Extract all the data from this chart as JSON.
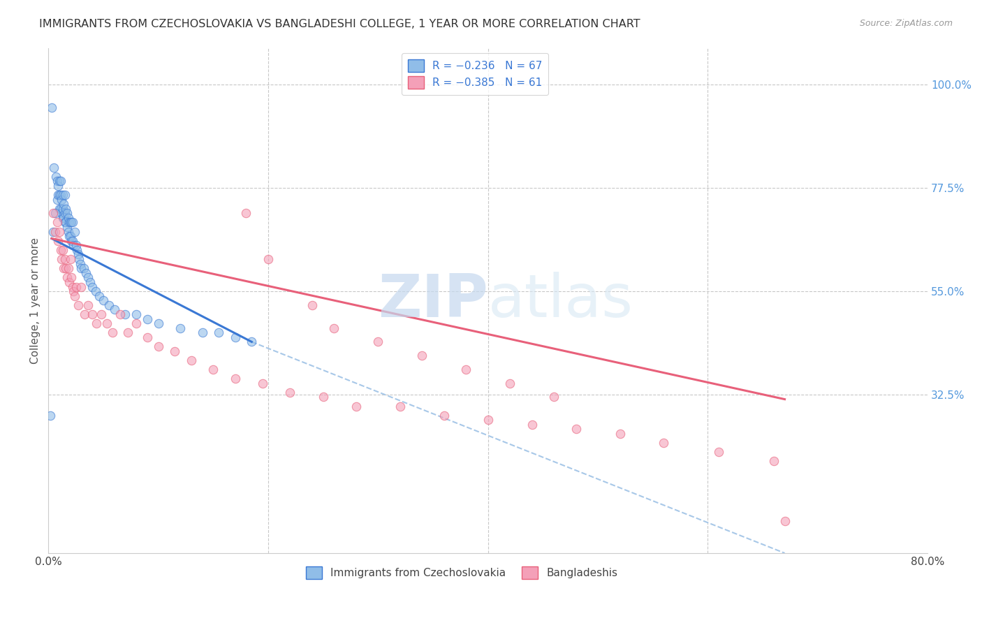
{
  "title": "IMMIGRANTS FROM CZECHOSLOVAKIA VS BANGLADESHI COLLEGE, 1 YEAR OR MORE CORRELATION CHART",
  "source": "Source: ZipAtlas.com",
  "ylabel": "College, 1 year or more",
  "xlim": [
    0.0,
    0.8
  ],
  "ylim": [
    -0.02,
    1.08
  ],
  "x_ticks": [
    0.0,
    0.2,
    0.4,
    0.6,
    0.8
  ],
  "x_tick_labels": [
    "0.0%",
    "",
    "",
    "",
    "80.0%"
  ],
  "y_ticks_right": [
    0.0,
    0.325,
    0.55,
    0.775,
    1.0
  ],
  "y_tick_labels_right": [
    "",
    "32.5%",
    "55.0%",
    "77.5%",
    "100.0%"
  ],
  "blue_scatter_x": [
    0.003,
    0.005,
    0.007,
    0.008,
    0.008,
    0.009,
    0.009,
    0.01,
    0.01,
    0.01,
    0.011,
    0.011,
    0.011,
    0.012,
    0.012,
    0.013,
    0.013,
    0.013,
    0.014,
    0.014,
    0.015,
    0.015,
    0.015,
    0.016,
    0.016,
    0.017,
    0.017,
    0.018,
    0.018,
    0.019,
    0.019,
    0.02,
    0.02,
    0.021,
    0.021,
    0.022,
    0.022,
    0.023,
    0.024,
    0.025,
    0.026,
    0.027,
    0.028,
    0.029,
    0.03,
    0.032,
    0.034,
    0.036,
    0.038,
    0.04,
    0.043,
    0.046,
    0.05,
    0.055,
    0.06,
    0.07,
    0.08,
    0.09,
    0.1,
    0.12,
    0.14,
    0.155,
    0.17,
    0.185,
    0.002,
    0.004,
    0.006
  ],
  "blue_scatter_y": [
    0.95,
    0.82,
    0.8,
    0.75,
    0.79,
    0.76,
    0.78,
    0.73,
    0.76,
    0.79,
    0.73,
    0.76,
    0.79,
    0.72,
    0.75,
    0.71,
    0.73,
    0.76,
    0.71,
    0.74,
    0.7,
    0.72,
    0.76,
    0.7,
    0.73,
    0.69,
    0.72,
    0.68,
    0.71,
    0.67,
    0.7,
    0.67,
    0.7,
    0.66,
    0.7,
    0.66,
    0.7,
    0.65,
    0.68,
    0.65,
    0.64,
    0.63,
    0.62,
    0.61,
    0.6,
    0.6,
    0.59,
    0.58,
    0.57,
    0.56,
    0.55,
    0.54,
    0.53,
    0.52,
    0.51,
    0.5,
    0.5,
    0.49,
    0.48,
    0.47,
    0.46,
    0.46,
    0.45,
    0.44,
    0.28,
    0.68,
    0.72
  ],
  "pink_scatter_x": [
    0.004,
    0.006,
    0.008,
    0.009,
    0.01,
    0.011,
    0.012,
    0.013,
    0.014,
    0.015,
    0.016,
    0.017,
    0.018,
    0.019,
    0.02,
    0.021,
    0.022,
    0.023,
    0.024,
    0.025,
    0.027,
    0.03,
    0.033,
    0.036,
    0.04,
    0.044,
    0.048,
    0.053,
    0.058,
    0.065,
    0.072,
    0.08,
    0.09,
    0.1,
    0.115,
    0.13,
    0.15,
    0.17,
    0.195,
    0.22,
    0.25,
    0.28,
    0.32,
    0.36,
    0.4,
    0.44,
    0.48,
    0.52,
    0.56,
    0.61,
    0.66,
    0.18,
    0.2,
    0.24,
    0.26,
    0.3,
    0.34,
    0.38,
    0.42,
    0.46,
    0.67
  ],
  "pink_scatter_y": [
    0.72,
    0.68,
    0.7,
    0.66,
    0.68,
    0.64,
    0.62,
    0.64,
    0.6,
    0.62,
    0.6,
    0.58,
    0.6,
    0.57,
    0.62,
    0.58,
    0.56,
    0.55,
    0.54,
    0.56,
    0.52,
    0.56,
    0.5,
    0.52,
    0.5,
    0.48,
    0.5,
    0.48,
    0.46,
    0.5,
    0.46,
    0.48,
    0.45,
    0.43,
    0.42,
    0.4,
    0.38,
    0.36,
    0.35,
    0.33,
    0.32,
    0.3,
    0.3,
    0.28,
    0.27,
    0.26,
    0.25,
    0.24,
    0.22,
    0.2,
    0.18,
    0.72,
    0.62,
    0.52,
    0.47,
    0.44,
    0.41,
    0.38,
    0.35,
    0.32,
    0.05
  ],
  "blue_line_x": [
    0.003,
    0.185
  ],
  "blue_line_y": [
    0.665,
    0.44
  ],
  "pink_line_x": [
    0.003,
    0.67
  ],
  "pink_line_y": [
    0.665,
    0.315
  ],
  "dashed_line_x": [
    0.185,
    0.67
  ],
  "dashed_line_y": [
    0.44,
    -0.02
  ],
  "watermark_zip": "ZIP",
  "watermark_atlas": "atlas",
  "background_color": "#ffffff",
  "grid_color": "#c8c8c8",
  "scatter_blue_color": "#90bde8",
  "scatter_pink_color": "#f4a0b8",
  "line_blue_color": "#3a78d4",
  "line_pink_color": "#e8607a",
  "dashed_line_color": "#a8c8e8",
  "right_axis_color": "#5599dd",
  "title_fontsize": 11.5,
  "source_fontsize": 9,
  "axis_label_fontsize": 11,
  "tick_fontsize": 11
}
